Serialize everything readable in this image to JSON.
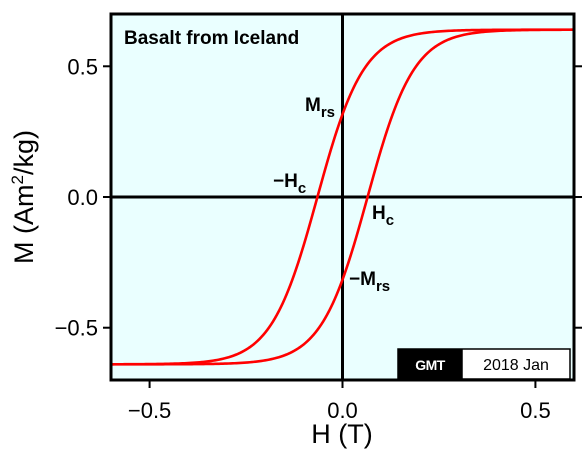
{
  "chart_data": {
    "type": "line",
    "title": "Basalt from Iceland",
    "xlabel": "H (T)",
    "ylabel_main": "M (Am",
    "ylabel_sup": "2",
    "ylabel_tail": "/kg)",
    "xlim": [
      -0.6,
      0.6
    ],
    "ylim": [
      -0.7,
      0.7
    ],
    "x_ticks": [
      {
        "value": -0.5,
        "label": "−0.5"
      },
      {
        "value": 0.0,
        "label": "0.0"
      },
      {
        "value": 0.5,
        "label": "0.5"
      }
    ],
    "y_ticks": [
      {
        "value": 0.5,
        "label": "0.5"
      },
      {
        "value": 0.0,
        "label": "0.0"
      },
      {
        "value": -0.5,
        "label": "−0.5"
      }
    ],
    "grid": false,
    "background_color": "#eaffff",
    "line_color": "#ff0000",
    "model": {
      "Ms": 0.64,
      "Hc": 0.065,
      "w": 0.12
    },
    "series": [
      {
        "x": [
          -0.6,
          -0.5,
          -0.4,
          -0.3,
          -0.2,
          -0.15,
          -0.1,
          -0.065,
          -0.03,
          0.0,
          0.05,
          0.1,
          0.2,
          0.3,
          0.4,
          0.5,
          0.6
        ],
        "y": [
          -0.63,
          -0.61,
          -0.58,
          -0.51,
          -0.4,
          -0.33,
          -0.2,
          0.0,
          0.15,
          0.3,
          0.38,
          0.46,
          0.53,
          0.58,
          0.61,
          0.625,
          0.63
        ]
      },
      {
        "x": [
          -0.6,
          -0.5,
          -0.4,
          -0.3,
          -0.2,
          -0.1,
          -0.05,
          0.0,
          0.03,
          0.065,
          0.1,
          0.15,
          0.2,
          0.3,
          0.4,
          0.5,
          0.6
        ],
        "y": [
          -0.63,
          -0.625,
          -0.61,
          -0.58,
          -0.53,
          -0.46,
          -0.38,
          -0.3,
          -0.15,
          0.0,
          0.2,
          0.33,
          0.4,
          0.51,
          0.58,
          0.61,
          0.63
        ]
      }
    ],
    "annotations": [
      {
        "key": "mrs",
        "main": "M",
        "sub": "rs",
        "x": 0.0,
        "y": 0.3
      },
      {
        "key": "neg_hc",
        "main": "−H",
        "sub": "c",
        "x": -0.065,
        "y": 0.0
      },
      {
        "key": "hc",
        "main": "H",
        "sub": "c",
        "x": 0.065,
        "y": 0.0
      },
      {
        "key": "neg_mrs",
        "main": "−M",
        "sub": "rs",
        "x": 0.0,
        "y": -0.3
      }
    ]
  },
  "stamp": {
    "logo_text": "GMT",
    "date_text": "2018 Jan"
  }
}
